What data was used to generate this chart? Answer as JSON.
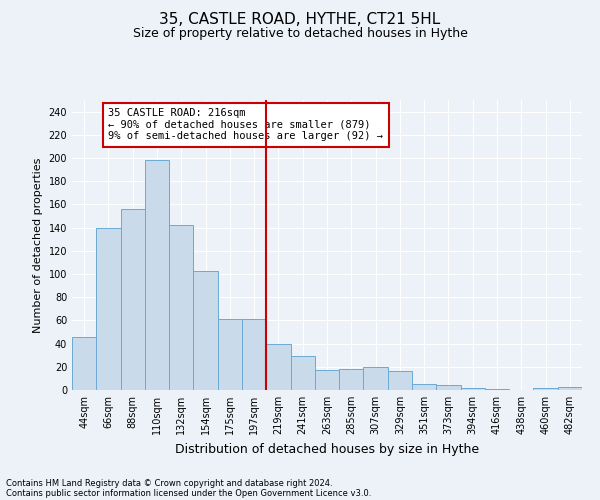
{
  "title": "35, CASTLE ROAD, HYTHE, CT21 5HL",
  "subtitle": "Size of property relative to detached houses in Hythe",
  "xlabel": "Distribution of detached houses by size in Hythe",
  "ylabel": "Number of detached properties",
  "bin_labels": [
    "44sqm",
    "66sqm",
    "88sqm",
    "110sqm",
    "132sqm",
    "154sqm",
    "175sqm",
    "197sqm",
    "219sqm",
    "241sqm",
    "263sqm",
    "285sqm",
    "307sqm",
    "329sqm",
    "351sqm",
    "373sqm",
    "394sqm",
    "416sqm",
    "438sqm",
    "460sqm",
    "482sqm"
  ],
  "bar_heights": [
    46,
    140,
    156,
    198,
    142,
    103,
    61,
    61,
    40,
    29,
    17,
    18,
    20,
    16,
    5,
    4,
    2,
    1,
    0,
    2,
    3
  ],
  "bar_color": "#c9daea",
  "bar_edge_color": "#6aaad4",
  "vline_color": "#cc0000",
  "annotation_text": "35 CASTLE ROAD: 216sqm\n← 90% of detached houses are smaller (879)\n9% of semi-detached houses are larger (92) →",
  "annotation_box_color": "#ffffff",
  "annotation_box_edge": "#cc0000",
  "ylim_max": 250,
  "yticks": [
    0,
    20,
    40,
    60,
    80,
    100,
    120,
    140,
    160,
    180,
    200,
    220,
    240
  ],
  "footer1": "Contains HM Land Registry data © Crown copyright and database right 2024.",
  "footer2": "Contains public sector information licensed under the Open Government Licence v3.0.",
  "background_color": "#edf2f8",
  "grid_color": "#ffffff",
  "title_fontsize": 11,
  "subtitle_fontsize": 9,
  "ylabel_fontsize": 8,
  "xlabel_fontsize": 9,
  "tick_fontsize": 7,
  "annotation_fontsize": 7.5,
  "footer_fontsize": 6
}
